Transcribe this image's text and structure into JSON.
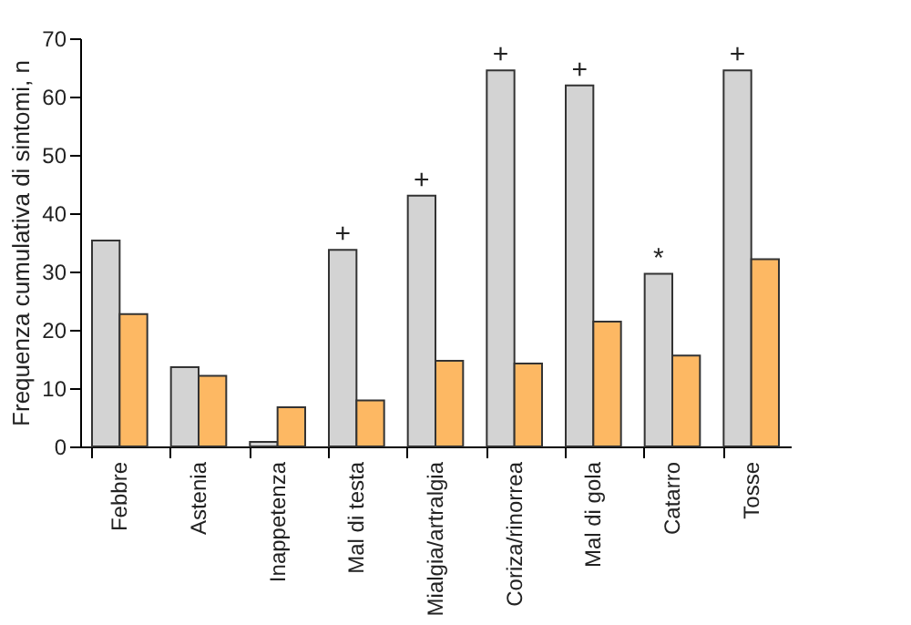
{
  "chart_data": {
    "type": "bar",
    "ylabel": "Frequenza cumulativa di sintomi, n",
    "categories": [
      "Febbre",
      "Astenia",
      "Inappetenza",
      "Mal di testa",
      "Mialgia/artralgia",
      "Coriza/rinorrea",
      "Mal di gola",
      "Catarro",
      "Tosse"
    ],
    "series": [
      {
        "color": "#d3d3d3",
        "values": [
          35.3,
          13.6,
          0.8,
          33.7,
          43,
          64.5,
          61.9,
          29.6,
          64.5
        ]
      },
      {
        "color": "#fdb863",
        "values": [
          22.7,
          12.1,
          6.7,
          7.9,
          14.7,
          14.2,
          21.4,
          15.6,
          32.1
        ]
      }
    ],
    "ylim": [
      0,
      70
    ],
    "yticks": [
      0,
      10,
      20,
      30,
      40,
      50,
      60,
      70
    ],
    "grid": false,
    "legend": false,
    "annotations": [
      {
        "text": "+",
        "x": "Mal di testa",
        "y": 33.7
      },
      {
        "text": "+",
        "x": "Mialgia/artralgia",
        "y": 43
      },
      {
        "text": "+",
        "x": "Coriza/rinorrea",
        "y": 64.5
      },
      {
        "text": "+",
        "x": "Mal di gola",
        "y": 61.9
      },
      {
        "text": "*",
        "x": "Catarro",
        "y": 29.6
      },
      {
        "text": "+",
        "x": "Tosse",
        "y": 64.5
      }
    ]
  }
}
